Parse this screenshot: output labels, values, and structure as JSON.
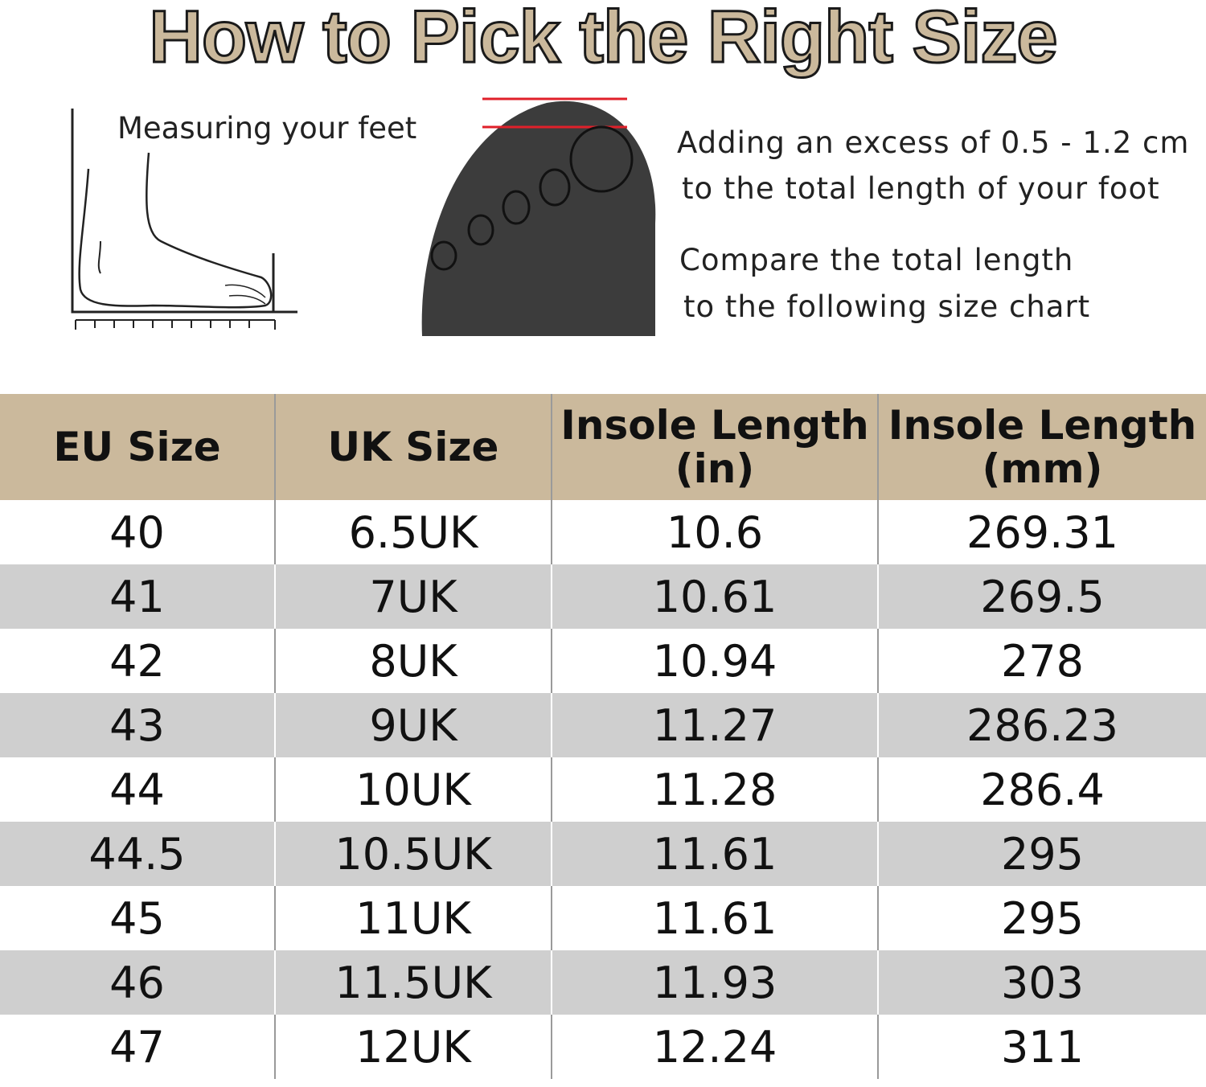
{
  "title": "How to Pick the Right Size",
  "measuring_label": "Measuring your feet",
  "notes": [
    "Adding an excess of 0.5 - 1.2 cm",
    "to the total length of your foot",
    "Compare the total length",
    "to the following size chart"
  ],
  "colors": {
    "header": "#cbb99c",
    "stripe": "#cfcfcf",
    "guide_line": "#e0202a"
  },
  "table": {
    "headers": [
      "EU Size",
      "UK Size",
      "Insole Length\n(in)",
      "Insole Length\n(mm)"
    ],
    "rows": [
      [
        "40",
        "6.5UK",
        "10.6",
        "269.31"
      ],
      [
        "41",
        "7UK",
        "10.61",
        "269.5"
      ],
      [
        "42",
        "8UK",
        "10.94",
        "278"
      ],
      [
        "43",
        "9UK",
        "11.27",
        "286.23"
      ],
      [
        "44",
        "10UK",
        "11.28",
        "286.4"
      ],
      [
        "44.5",
        "10.5UK",
        "11.61",
        "295"
      ],
      [
        "45",
        "11UK",
        "11.61",
        "295"
      ],
      [
        "46",
        "11.5UK",
        "11.93",
        "303"
      ],
      [
        "47",
        "12UK",
        "12.24",
        "311"
      ]
    ]
  }
}
